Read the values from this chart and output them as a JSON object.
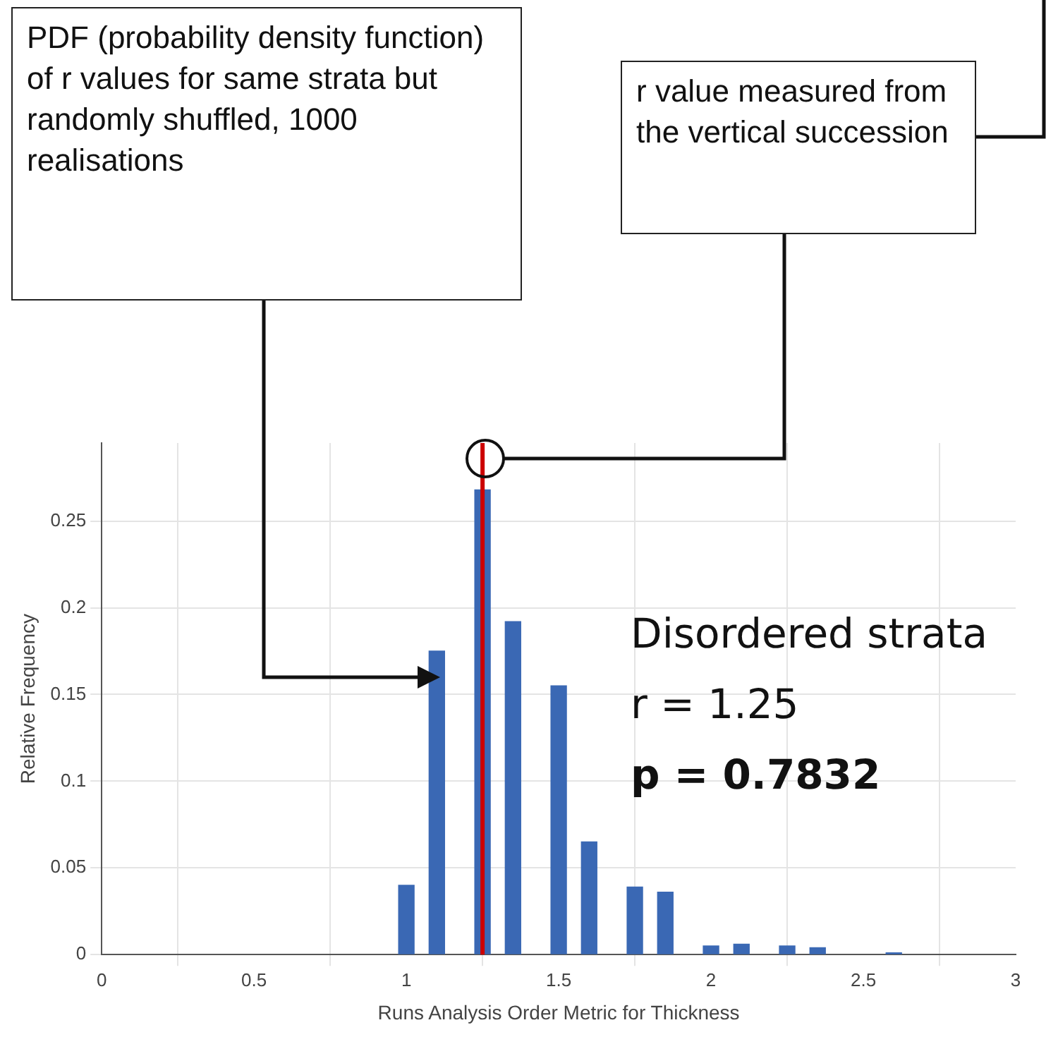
{
  "chart_data": {
    "type": "bar",
    "xlabel": "Runs Analysis Order Metric for Thickness",
    "ylabel": "Relative Frequency",
    "x": [
      1,
      1.1,
      1.25,
      1.35,
      1.5,
      1.6,
      1.75,
      1.85,
      2,
      2.1,
      2.25,
      2.35,
      2.6
    ],
    "values": [
      0.04,
      0.175,
      0.268,
      0.192,
      0.155,
      0.065,
      0.039,
      0.036,
      0.005,
      0.006,
      0.005,
      0.004,
      0.001
    ],
    "color": "#3a68b4",
    "xlim": [
      0,
      3
    ],
    "xticks": [
      0,
      0.5,
      1,
      1.5,
      2,
      2.5,
      3
    ],
    "ylim": [
      0,
      0.295
    ],
    "yticks": [
      0,
      0.05,
      0.1,
      0.15,
      0.2,
      0.25
    ],
    "grid": true,
    "ref_lines": [
      {
        "axis": "x",
        "value": 1.25,
        "color": "#cc0000"
      }
    ],
    "annotations": [
      "PDF (probability density function) of r values for same strata but randomly shuffled, 1000 realisations",
      "r value measured from the vertical succession",
      "Disordered strata",
      "r = 1.25",
      "p = 0.7832"
    ]
  }
}
